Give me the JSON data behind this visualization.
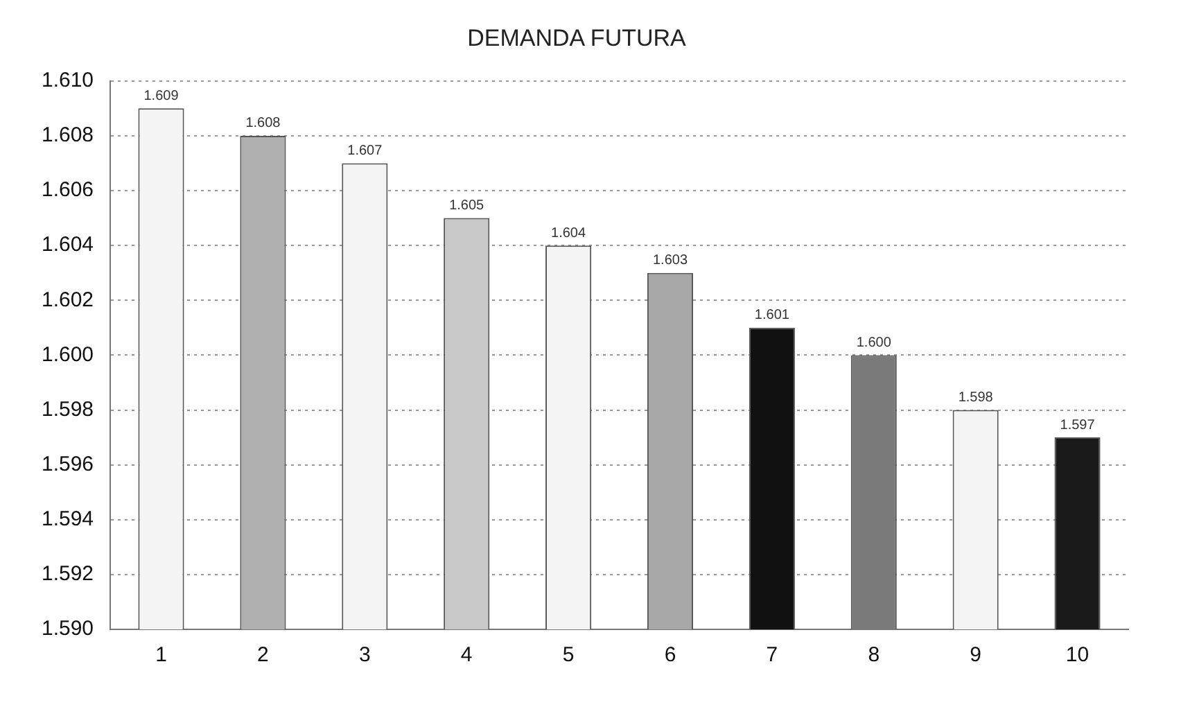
{
  "chart_data": {
    "type": "bar",
    "title": "DEMANDA FUTURA",
    "categories": [
      "1",
      "2",
      "3",
      "4",
      "5",
      "6",
      "7",
      "8",
      "9",
      "10"
    ],
    "values": [
      1.609,
      1.608,
      1.607,
      1.605,
      1.604,
      1.603,
      1.601,
      1.6,
      1.598,
      1.597
    ],
    "value_labels": [
      "1.609",
      "1.608",
      "1.607",
      "1.605",
      "1.604",
      "1.603",
      "1.601",
      "1.600",
      "1.598",
      "1.597"
    ],
    "colors": [
      "#f4f4f4",
      "#b0b0b0",
      "#f4f4f4",
      "#c8c8c8",
      "#f4f4f4",
      "#a8a8a8",
      "#111111",
      "#7a7a7a",
      "#f4f4f4",
      "#1a1a1a"
    ],
    "ylim": [
      1.59,
      1.61
    ],
    "yticks": [
      {
        "value": 1.59,
        "label": "1.590"
      },
      {
        "value": 1.592,
        "label": "1.592"
      },
      {
        "value": 1.594,
        "label": "1.594"
      },
      {
        "value": 1.596,
        "label": "1.596"
      },
      {
        "value": 1.598,
        "label": "1.598"
      },
      {
        "value": 1.6,
        "label": "1.600"
      },
      {
        "value": 1.602,
        "label": "1.602"
      },
      {
        "value": 1.604,
        "label": "1.604"
      },
      {
        "value": 1.606,
        "label": "1.606"
      },
      {
        "value": 1.608,
        "label": "1.608"
      },
      {
        "value": 1.61,
        "label": "1.610"
      }
    ],
    "grid": "y",
    "legend": false
  }
}
